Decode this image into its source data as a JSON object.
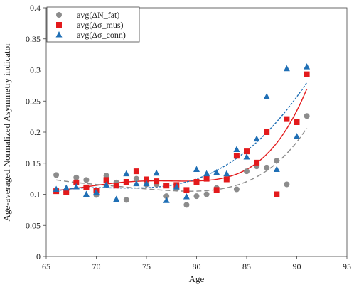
{
  "chart_data": {
    "type": "scatter",
    "title": "",
    "xlabel": "Age",
    "ylabel": "Age-averaged Normalized Asymmetry indicator",
    "xlim": [
      65,
      95
    ],
    "ylim": [
      0,
      0.4
    ],
    "x_ticks": [
      "65",
      "70",
      "75",
      "80",
      "85",
      "90",
      "95"
    ],
    "y_ticks": [
      "0",
      "0.05",
      "0.1",
      "0.15",
      "0.2",
      "0.25",
      "0.3",
      "0.35",
      "0.4"
    ],
    "grid": false,
    "legend_position": "top-left",
    "series": [
      {
        "name": "avg(ΔN_fat)",
        "marker": "circle",
        "color": "#8c8c8c",
        "trend_style": "long-dash",
        "x": [
          66,
          67,
          68,
          69,
          70,
          71,
          72,
          73,
          74,
          75,
          76,
          77,
          78,
          79,
          80,
          81,
          82,
          83,
          84,
          85,
          86,
          87,
          88,
          89,
          91
        ],
        "y": [
          0.131,
          0.103,
          0.127,
          0.123,
          0.099,
          0.13,
          0.119,
          0.091,
          0.125,
          0.116,
          0.116,
          0.097,
          0.109,
          0.083,
          0.097,
          0.1,
          0.11,
          0.125,
          0.108,
          0.137,
          0.145,
          0.143,
          0.154,
          0.116,
          0.226
        ]
      },
      {
        "name": "avg(Δσ_mus)",
        "marker": "square",
        "color": "#e31a1c",
        "trend_style": "solid",
        "x": [
          66,
          67,
          68,
          69,
          70,
          71,
          72,
          73,
          74,
          75,
          76,
          77,
          78,
          79,
          80,
          81,
          82,
          83,
          84,
          85,
          86,
          87,
          88,
          89,
          90,
          91
        ],
        "y": [
          0.105,
          0.104,
          0.119,
          0.111,
          0.106,
          0.123,
          0.114,
          0.12,
          0.137,
          0.124,
          0.121,
          0.114,
          0.115,
          0.107,
          0.12,
          0.125,
          0.107,
          0.124,
          0.162,
          0.169,
          0.151,
          0.2,
          0.1,
          0.221,
          0.216,
          0.293
        ]
      },
      {
        "name": "avg(Δσ_conn)",
        "marker": "triangle",
        "color": "#1f6fb5",
        "trend_style": "short-dash",
        "x": [
          66,
          67,
          68,
          69,
          70,
          71,
          72,
          73,
          74,
          75,
          76,
          77,
          78,
          79,
          80,
          81,
          82,
          83,
          84,
          85,
          86,
          87,
          88,
          89,
          90,
          91
        ],
        "y": [
          0.108,
          0.11,
          0.112,
          0.1,
          0.103,
          0.115,
          0.092,
          0.133,
          0.117,
          0.117,
          0.134,
          0.09,
          0.112,
          0.096,
          0.14,
          0.133,
          0.135,
          0.133,
          0.172,
          0.16,
          0.189,
          0.257,
          0.14,
          0.302,
          0.193,
          0.305
        ]
      }
    ]
  }
}
